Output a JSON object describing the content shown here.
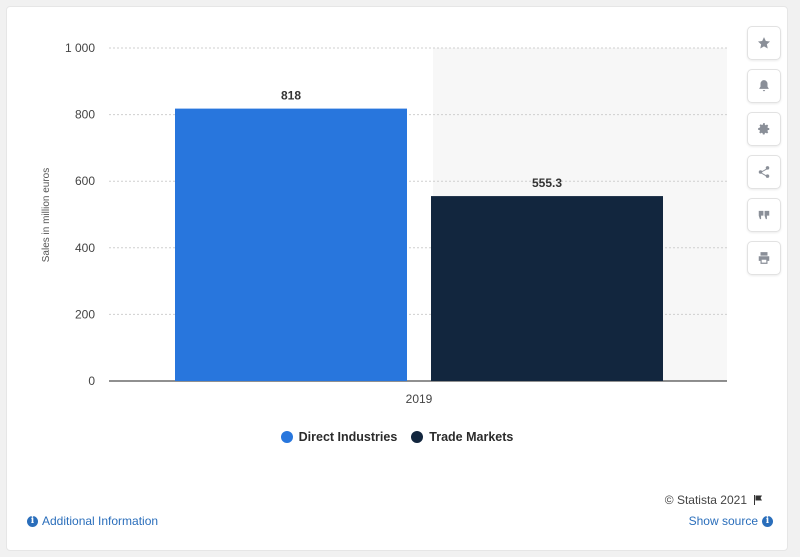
{
  "chart_data": {
    "type": "bar",
    "categories": [
      "2019"
    ],
    "series": [
      {
        "name": "Direct Industries",
        "values": [
          818
        ],
        "color": "#2876dd"
      },
      {
        "name": "Trade Markets",
        "values": [
          555.3
        ],
        "color": "#12263e"
      }
    ],
    "data_labels": [
      "818",
      "555.3"
    ],
    "ylabel": "Sales in million euros",
    "ylim": [
      0,
      1000
    ],
    "yticks": [
      0,
      200,
      400,
      600,
      800,
      1000
    ],
    "ytick_labels": [
      "0",
      "200",
      "400",
      "600",
      "800",
      "1 000"
    ],
    "grid": true,
    "legend_position": "bottom"
  },
  "toolbar": {
    "icons": [
      "star-icon",
      "bell-icon",
      "gear-icon",
      "share-icon",
      "quote-icon",
      "print-icon"
    ]
  },
  "footer": {
    "credit": "© Statista 2021",
    "additional_info": "Additional Information",
    "show_source": "Show source"
  }
}
